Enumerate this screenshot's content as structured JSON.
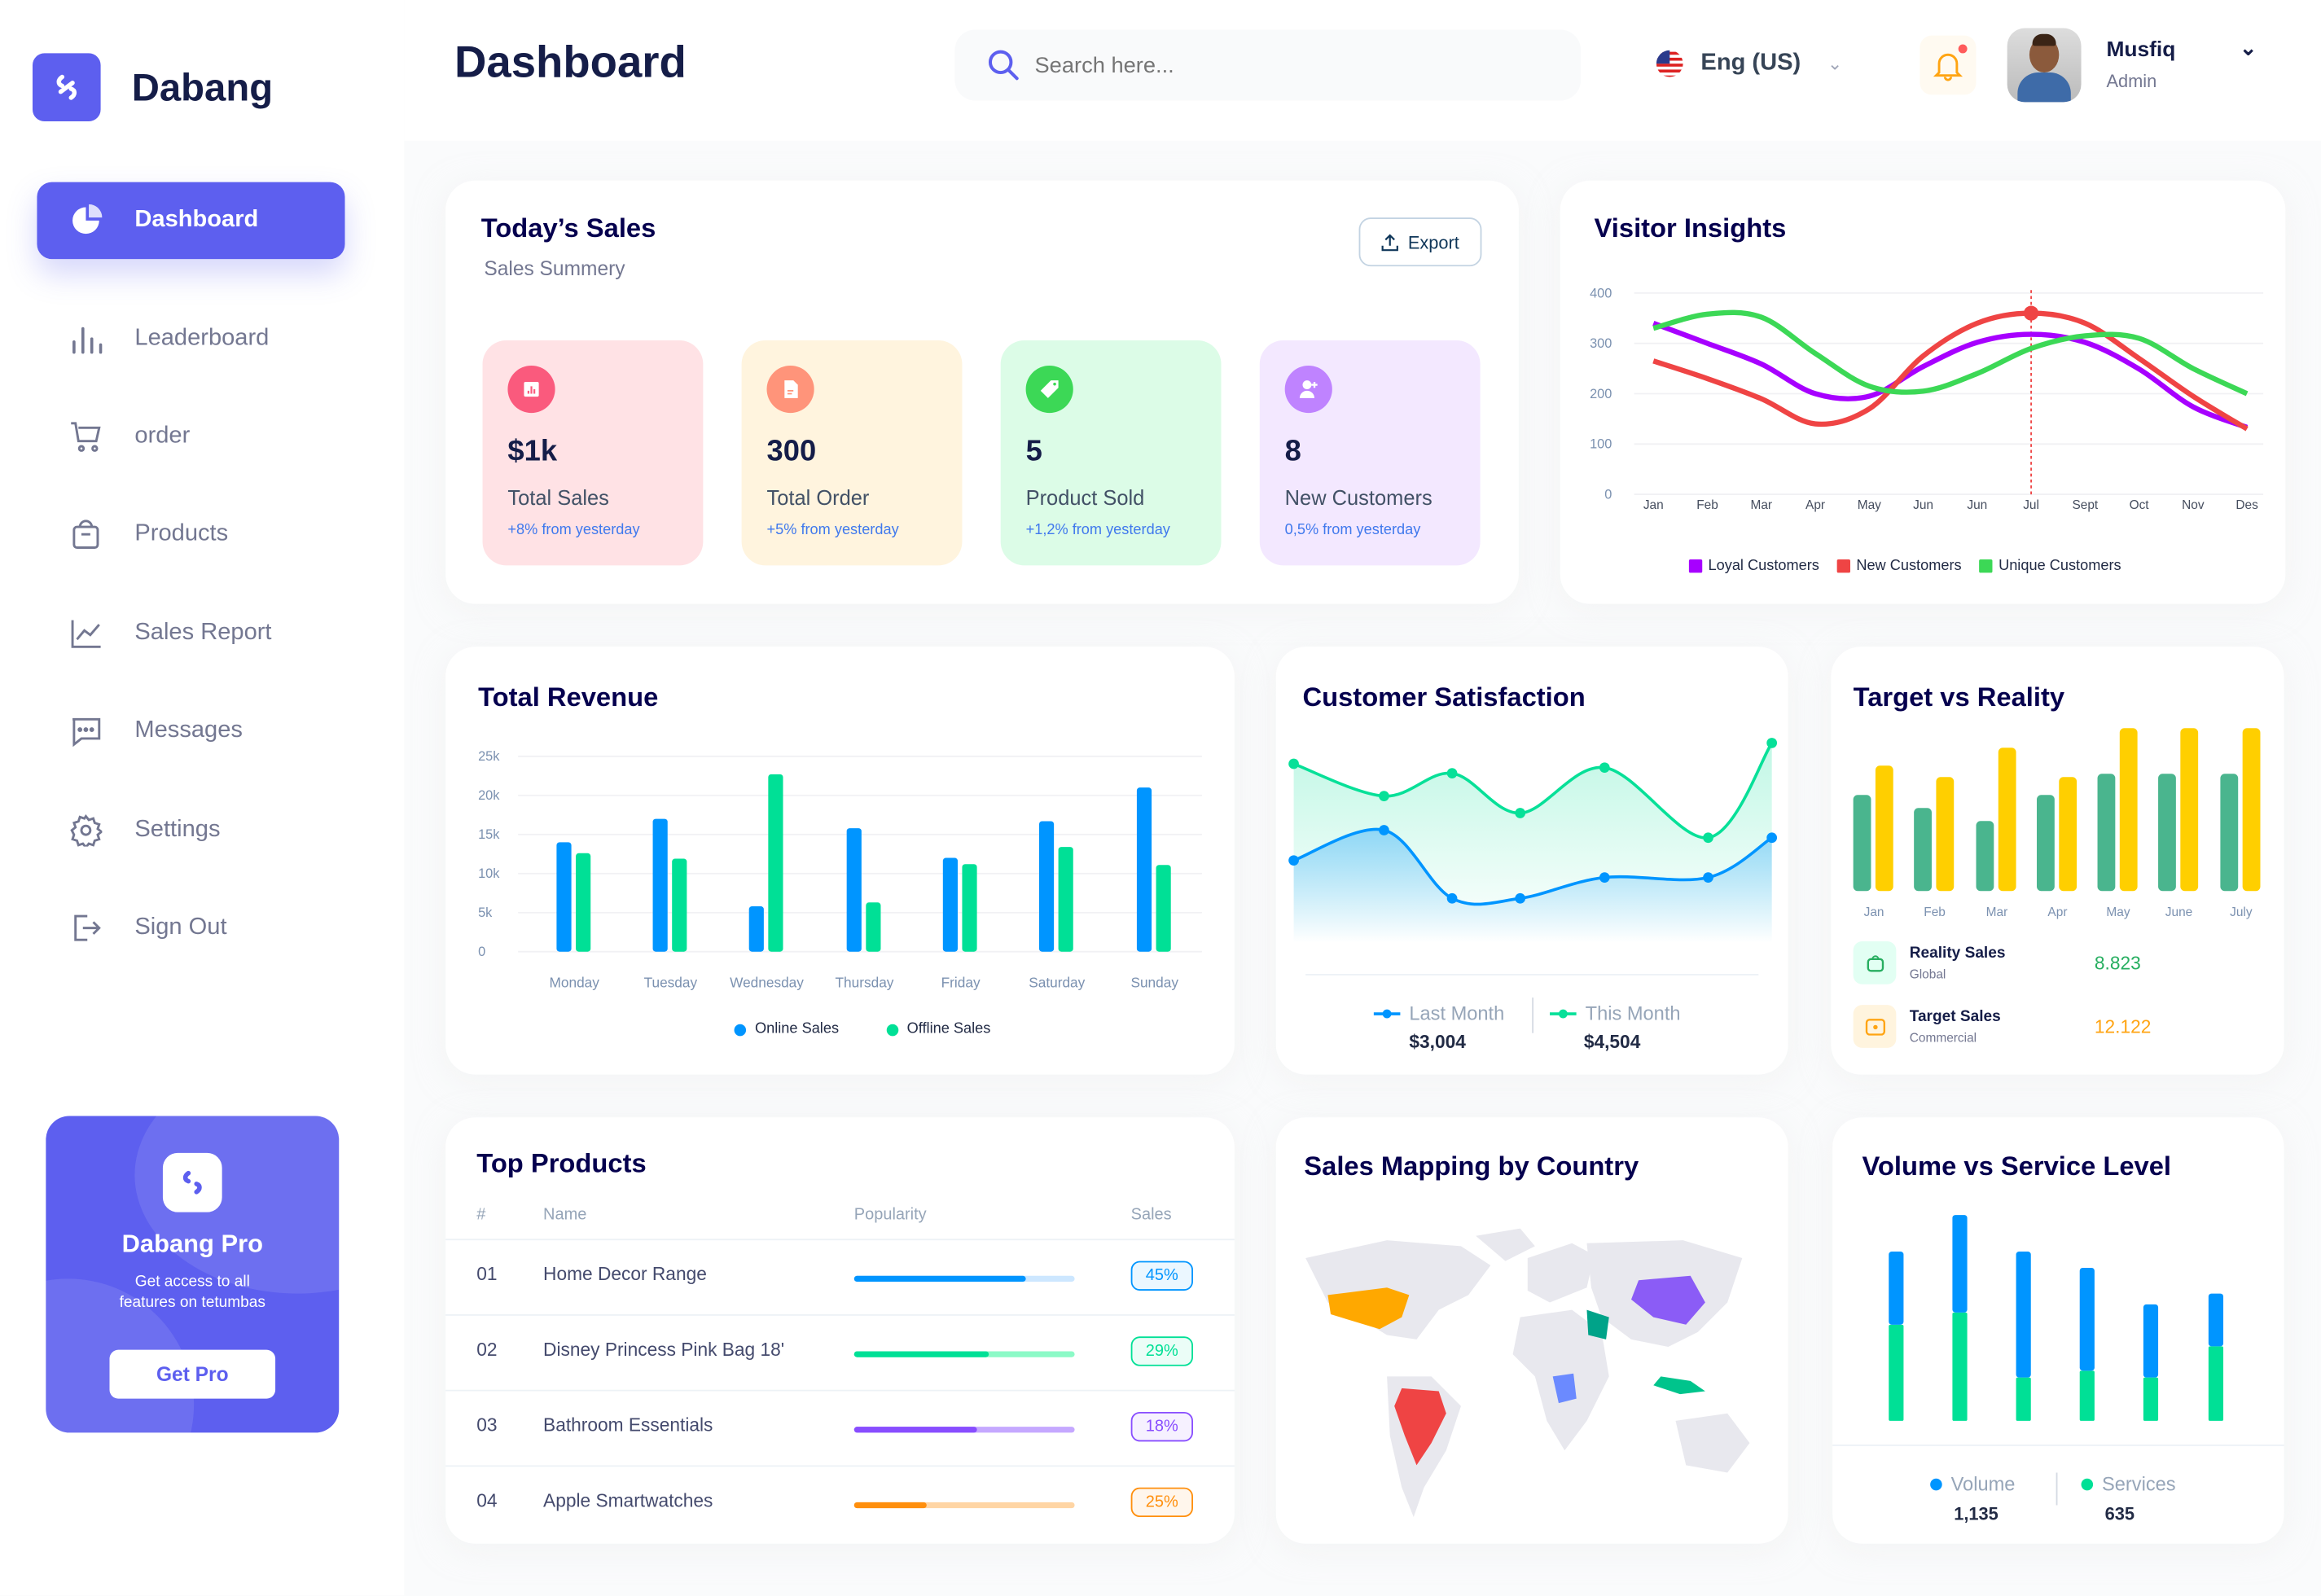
{
  "brand": {
    "name": "Dabang"
  },
  "sidebar": {
    "items": [
      {
        "label": "Dashboard",
        "icon": "pie-chart-icon",
        "active": true
      },
      {
        "label": "Leaderboard",
        "icon": "bar-chart-icon"
      },
      {
        "label": "order",
        "icon": "cart-icon"
      },
      {
        "label": "Products",
        "icon": "shopping-bag-icon"
      },
      {
        "label": "Sales Report",
        "icon": "line-chart-icon"
      },
      {
        "label": "Messages",
        "icon": "message-icon"
      },
      {
        "label": "Settings",
        "icon": "gear-icon"
      },
      {
        "label": "Sign Out",
        "icon": "sign-out-icon"
      }
    ],
    "pro": {
      "title": "Dabang Pro",
      "line1": "Get access to all",
      "line2": "features on tetumbas",
      "button": "Get Pro"
    }
  },
  "header": {
    "title": "Dashboard",
    "search_placeholder": "Search here...",
    "language": "Eng (US)",
    "user": {
      "name": "Musfiq",
      "role": "Admin"
    },
    "notification_dot": true
  },
  "colors": {
    "primary": "#5D5FEF",
    "dark": "#151D48",
    "muted": "#737791"
  },
  "todays_sales": {
    "title": "Today’s Sales",
    "subtitle": "Sales Summery",
    "export": "Export",
    "stats": [
      {
        "value": "$1k",
        "label": "Total Sales",
        "change": "+8% from yesterday",
        "bg": "#FFE2E5",
        "icon_bg": "#FA5A7D",
        "icon": "chart-icon"
      },
      {
        "value": "300",
        "label": "Total Order",
        "change": "+5% from yesterday",
        "bg": "#FFF4DE",
        "icon_bg": "#FF947A",
        "icon": "document-icon"
      },
      {
        "value": "5",
        "label": "Product Sold",
        "change": "+1,2% from yesterday",
        "bg": "#DCFCE7",
        "icon_bg": "#3CD856",
        "icon": "tag-icon"
      },
      {
        "value": "8",
        "label": "New Customers",
        "change": "0,5% from yesterday",
        "bg": "#F3E8FF",
        "icon_bg": "#BF83FF",
        "icon": "add-user-icon"
      }
    ]
  },
  "visitor_insights": {
    "title": "Visitor Insights"
  },
  "total_revenue": {
    "title": "Total Revenue"
  },
  "customer_satisfaction": {
    "title": "Customer Satisfaction",
    "last_label": "Last Month",
    "last_value": "$3,004",
    "this_label": "This Month",
    "this_value": "$4,504"
  },
  "target_vs_reality": {
    "title": "Target vs Reality",
    "rows": [
      {
        "label": "Reality Sales",
        "sub": "Global",
        "value": "8.823",
        "color": "#27AE60",
        "icon": "shopping-bag-icon"
      },
      {
        "label": "Target Sales",
        "sub": "Commercial",
        "value": "12.122",
        "color": "#FFA412",
        "icon": "ticket-icon"
      }
    ]
  },
  "top_products": {
    "title": "Top Products",
    "columns": [
      "#",
      "Name",
      "Popularity",
      "Sales"
    ],
    "rows": [
      {
        "num": "01",
        "name": "Home Decor Range",
        "popularity": 0.78,
        "sales": "45%",
        "color": "#0095FF",
        "light": "#CDE7FF"
      },
      {
        "num": "02",
        "name": "Disney Princess Pink Bag 18'",
        "popularity": 0.61,
        "sales": "29%",
        "color": "#00E096",
        "light": "#8CFAC7"
      },
      {
        "num": "03",
        "name": "Bathroom Essentials",
        "popularity": 0.56,
        "sales": "18%",
        "color": "#884DFF",
        "light": "#C5A8FF"
      },
      {
        "num": "04",
        "name": "Apple Smartwatches",
        "popularity": 0.33,
        "sales": "25%",
        "color": "#FF8F0D",
        "light": "#FFD5A4"
      }
    ]
  },
  "sales_mapping": {
    "title": "Sales Mapping by Country",
    "highlighted": [
      {
        "region": "USA",
        "color": "#FFA800"
      },
      {
        "region": "Brazil",
        "color": "#EF4444"
      },
      {
        "region": "Saudi Arabia",
        "color": "#00A389"
      },
      {
        "region": "China",
        "color": "#8B5CF6"
      },
      {
        "region": "Indonesia",
        "color": "#00C48C"
      },
      {
        "region": "DR Congo",
        "color": "#6B8AFF"
      }
    ]
  },
  "volume_service": {
    "title": "Volume vs Service Level",
    "volume_label": "Volume",
    "volume_value": "1,135",
    "services_label": "Services",
    "services_value": "635"
  },
  "chart_data": [
    {
      "type": "line",
      "id": "visitor_insights",
      "categories": [
        "Jan",
        "Feb",
        "Mar",
        "Apr",
        "May",
        "Jun",
        "Jun",
        "Jul",
        "Sept",
        "Oct",
        "Nov",
        "Des"
      ],
      "ylim": [
        0,
        400
      ],
      "yticks": [
        0,
        100,
        200,
        300,
        400
      ],
      "grid": true,
      "legend": "bottom",
      "highlight": {
        "series": "New Customers",
        "category_index": 7
      },
      "series": [
        {
          "name": "Loyal Customers",
          "color": "#A700FF",
          "values": [
            340,
            300,
            259,
            200,
            195,
            254,
            302,
            318,
            302,
            249,
            174,
            133
          ]
        },
        {
          "name": "New Customers",
          "color": "#EF4444",
          "values": [
            265,
            230,
            190,
            140,
            170,
            275,
            340,
            360,
            340,
            270,
            195,
            130
          ]
        },
        {
          "name": "Unique Customers",
          "color": "#3CD856",
          "values": [
            330,
            358,
            352,
            280,
            215,
            205,
            240,
            290,
            315,
            310,
            250,
            200
          ]
        }
      ]
    },
    {
      "type": "bar",
      "id": "total_revenue",
      "categories": [
        "Monday",
        "Tuesday",
        "Wednesday",
        "Thursday",
        "Friday",
        "Saturday",
        "Sunday"
      ],
      "ylim": [
        0,
        25000
      ],
      "yticks": [
        "0",
        "5k",
        "10k",
        "15k",
        "20k",
        "25k"
      ],
      "grid": true,
      "legend": "bottom",
      "series": [
        {
          "name": "Online Sales",
          "color": "#0095FF",
          "values": [
            14000,
            17000,
            5800,
            15800,
            12000,
            16700,
            21000
          ]
        },
        {
          "name": "Offline Sales",
          "color": "#00E096",
          "values": [
            12600,
            11900,
            22700,
            6300,
            11200,
            13400,
            11100
          ]
        }
      ]
    },
    {
      "type": "area",
      "id": "customer_satisfaction",
      "legend": "bottom",
      "series": [
        {
          "name": "Last Month",
          "color": "#0095FF",
          "values": [
            38,
            54,
            18,
            18,
            29,
            29,
            50
          ]
        },
        {
          "name": "This Month",
          "color": "#07E098",
          "values": [
            89,
            72,
            84,
            63,
            87,
            50,
            100
          ]
        }
      ]
    },
    {
      "type": "bar",
      "id": "target_vs_reality",
      "categories": [
        "Jan",
        "Feb",
        "Mar",
        "Apr",
        "May",
        "June",
        "July"
      ],
      "series": [
        {
          "name": "Reality Sales",
          "color": "#4AB58E",
          "values": [
            5.9,
            5.1,
            4.3,
            5.9,
            7.2,
            7.2,
            7.2
          ]
        },
        {
          "name": "Target Sales",
          "color": "#FFCF00",
          "values": [
            7.7,
            7.0,
            8.8,
            7.0,
            10,
            10,
            10
          ]
        }
      ]
    },
    {
      "type": "bar",
      "id": "volume_service",
      "stacked": true,
      "legend": "bottom",
      "series": [
        {
          "name": "Services",
          "color": "#00E096",
          "values": [
            71,
            80,
            32,
            37,
            32,
            55
          ]
        },
        {
          "name": "Volume",
          "color": "#0095FF",
          "values": [
            54,
            72,
            93,
            76,
            54,
            39
          ]
        }
      ]
    }
  ]
}
